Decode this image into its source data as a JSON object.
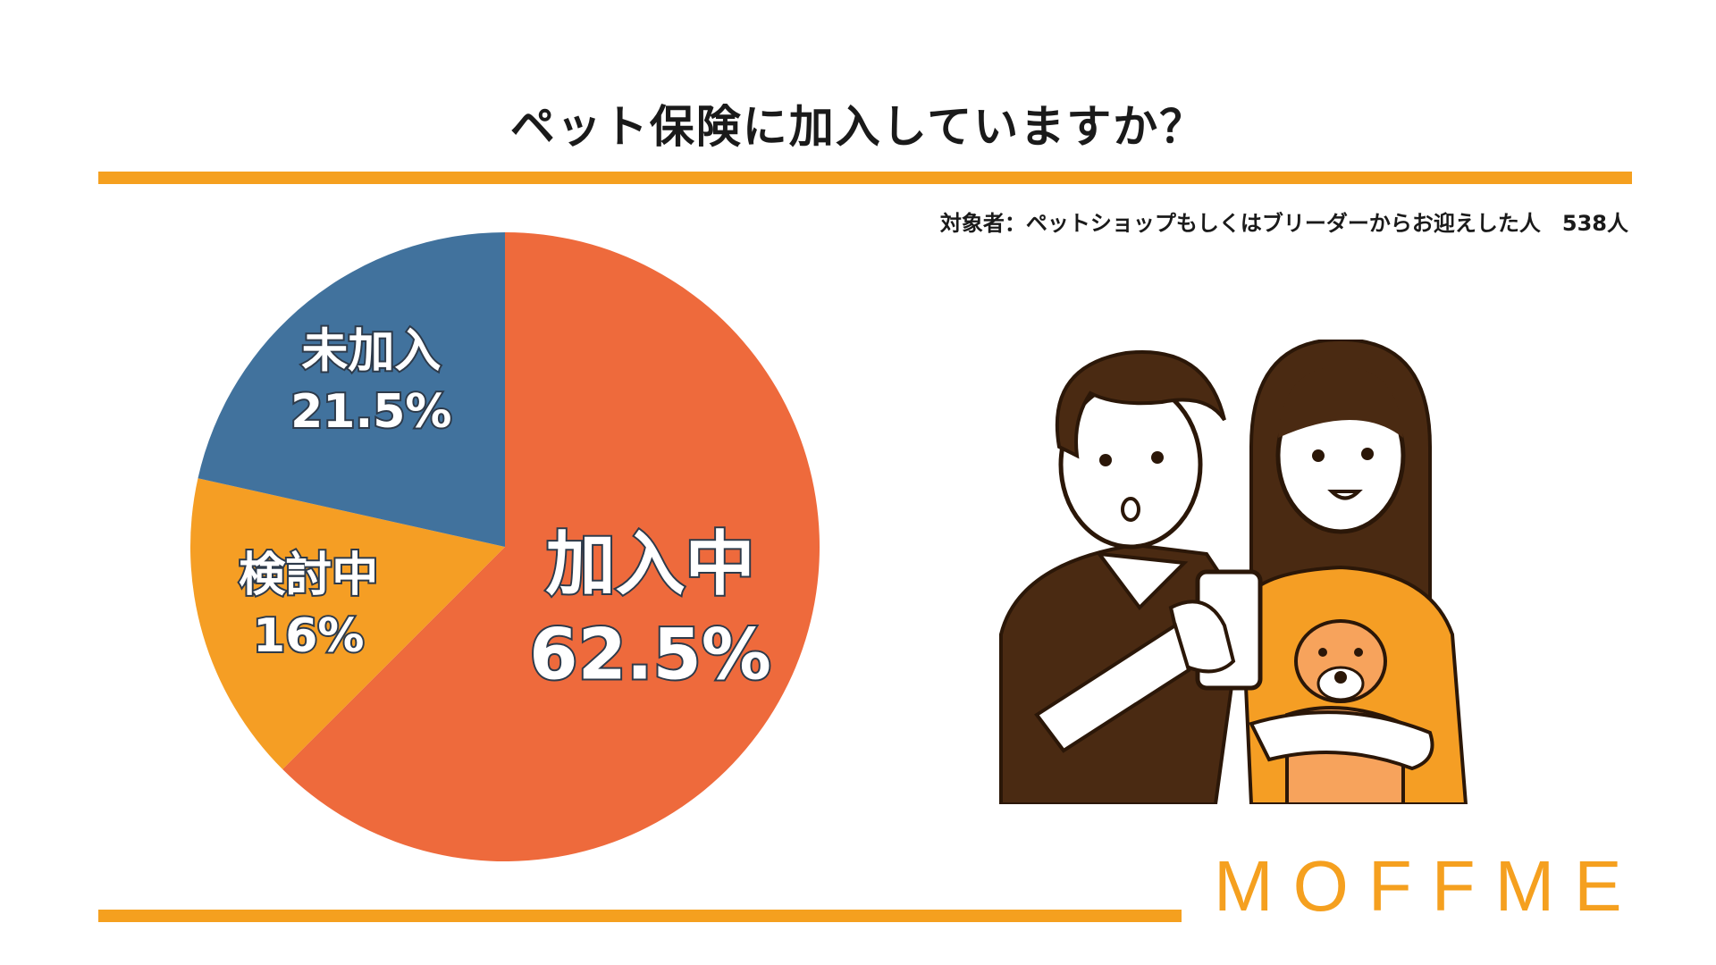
{
  "header": {
    "title": "ペット保険に加入していますか？",
    "subtitle": "対象者：ペットショップもしくはブリーダーからお迎えした人　538人"
  },
  "brand": {
    "logo_text": "MOFFME",
    "accent_color": "#f5a01f"
  },
  "chart_data": {
    "type": "pie",
    "title": "ペット保険に加入していますか？",
    "start_angle_deg": 0,
    "direction": "clockwise",
    "slices": [
      {
        "label": "加入中",
        "value": 62.5,
        "value_label": "62.5%",
        "color": "#ee6a3c"
      },
      {
        "label": "検討中",
        "value": 16,
        "value_label": "16%",
        "color": "#f59e24"
      },
      {
        "label": "未加入",
        "value": 21.5,
        "value_label": "21.5%",
        "color": "#41729d"
      }
    ]
  },
  "illustration": {
    "name": "couple-with-dog-illustration",
    "colors": {
      "hair": "#4a2a12",
      "shirt": "#f59e24",
      "skin": "#ffffff"
    }
  }
}
